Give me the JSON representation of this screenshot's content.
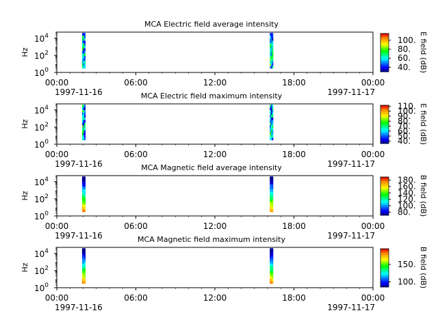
{
  "chart_data": [
    {
      "type": "heatmap",
      "title": "MCA  Electric field average intensity",
      "ylabel": "Hz",
      "y_scale": "log",
      "ylim": [
        1,
        50000
      ],
      "y_ticks": [
        "10^0",
        "10^2",
        "10^4"
      ],
      "x_ticks": [
        "00:00",
        "06:00",
        "12:00",
        "18:00",
        "00:00"
      ],
      "x_dates": [
        "1997-11-16",
        "1997-11-17"
      ],
      "colorbar_label": "E field (dB)",
      "colorbar_range": [
        30,
        115
      ],
      "colorbar_ticks": [
        "40.",
        "60.",
        "80.",
        "100."
      ],
      "data_intervals": [
        {
          "start": "1997-11-16 01:55",
          "end": "1997-11-16 02:10",
          "freq_range": [
            3,
            40000
          ]
        },
        {
          "start": "1997-11-16 16:10",
          "end": "1997-11-16 16:25",
          "freq_range": [
            3,
            40000
          ]
        }
      ],
      "intensity_profile": "mixed"
    },
    {
      "type": "heatmap",
      "title": "MCA  Electric field maximum intensity",
      "ylabel": "Hz",
      "y_scale": "log",
      "ylim": [
        1,
        50000
      ],
      "y_ticks": [
        "10^0",
        "10^2",
        "10^4"
      ],
      "x_ticks": [
        "00:00",
        "06:00",
        "12:00",
        "18:00",
        "00:00"
      ],
      "x_dates": [
        "1997-11-16",
        "1997-11-17"
      ],
      "colorbar_label": "E field (dB)",
      "colorbar_range": [
        35,
        112
      ],
      "colorbar_ticks": [
        "40.",
        "50.",
        "60.",
        "70.",
        "80.",
        "90.",
        "100.",
        "110."
      ],
      "data_intervals": [
        {
          "start": "1997-11-16 01:55",
          "end": "1997-11-16 02:10",
          "freq_range": [
            3,
            40000
          ]
        },
        {
          "start": "1997-11-16 16:10",
          "end": "1997-11-16 16:25",
          "freq_range": [
            3,
            40000
          ]
        }
      ],
      "intensity_profile": "mixed"
    },
    {
      "type": "heatmap",
      "title": "MCA  Magnetic field average intensity",
      "ylabel": "Hz",
      "y_scale": "log",
      "ylim": [
        1,
        50000
      ],
      "y_ticks": [
        "10^0",
        "10^2",
        "10^4"
      ],
      "x_ticks": [
        "00:00",
        "06:00",
        "12:00",
        "18:00",
        "00:00"
      ],
      "x_dates": [
        "1997-11-16",
        "1997-11-17"
      ],
      "colorbar_label": "B field (dB)",
      "colorbar_range": [
        70,
        190
      ],
      "colorbar_ticks": [
        "80.",
        "100.",
        "120.",
        "140.",
        "160.",
        "180."
      ],
      "data_intervals": [
        {
          "start": "1997-11-16 01:55",
          "end": "1997-11-16 02:10",
          "freq_range": [
            3,
            40000
          ]
        },
        {
          "start": "1997-11-16 16:10",
          "end": "1997-11-16 16:25",
          "freq_range": [
            3,
            40000
          ]
        }
      ],
      "intensity_profile": "low-frequency-high"
    },
    {
      "type": "heatmap",
      "title": "MCA  Magnetic field maximum intensity",
      "ylabel": "Hz",
      "y_scale": "log",
      "ylim": [
        1,
        50000
      ],
      "y_ticks": [
        "10^0",
        "10^2",
        "10^4"
      ],
      "x_ticks": [
        "00:00",
        "06:00",
        "12:00",
        "18:00",
        "00:00"
      ],
      "x_dates": [
        "1997-11-16",
        "1997-11-17"
      ],
      "colorbar_label": "B field (dB)",
      "colorbar_range": [
        85,
        195
      ],
      "colorbar_ticks": [
        "100.",
        "150."
      ],
      "data_intervals": [
        {
          "start": "1997-11-16 01:55",
          "end": "1997-11-16 02:10",
          "freq_range": [
            3,
            40000
          ]
        },
        {
          "start": "1997-11-16 16:10",
          "end": "1997-11-16 16:25",
          "freq_range": [
            3,
            40000
          ]
        }
      ],
      "intensity_profile": "low-frequency-high"
    }
  ]
}
